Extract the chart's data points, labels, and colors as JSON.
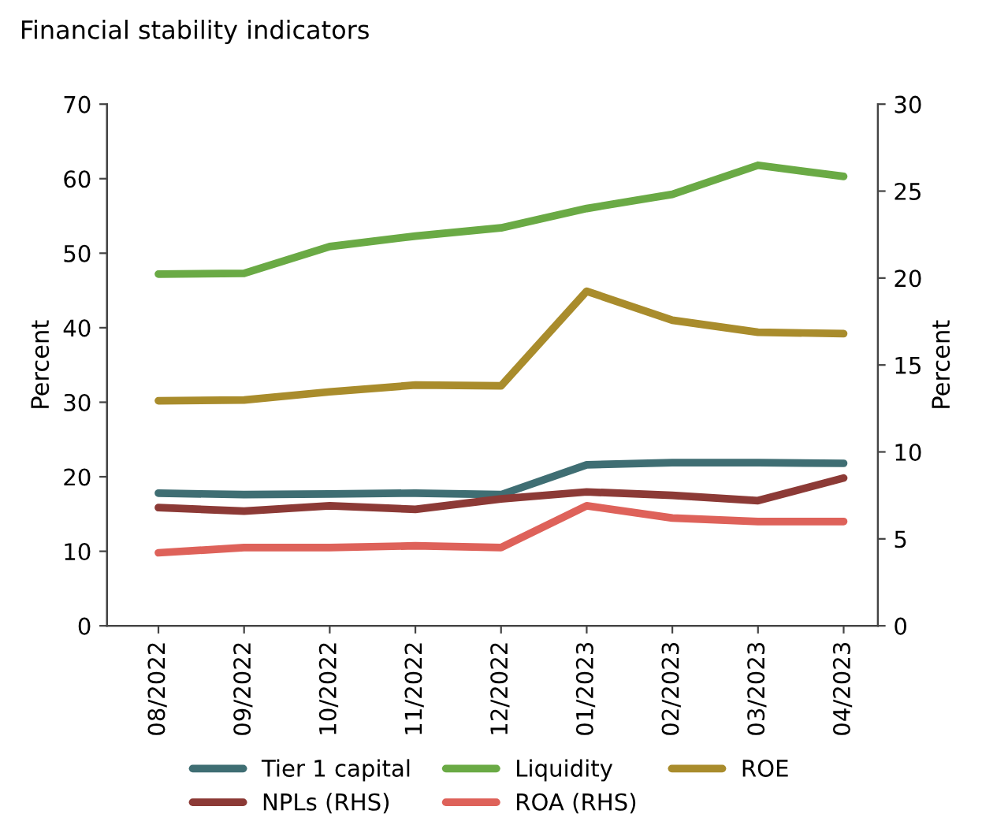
{
  "chart_data": {
    "type": "line",
    "title": "Financial stability indicators",
    "ylabel": "Percent",
    "y2label": "Percent",
    "categories": [
      "08/2022",
      "09/2022",
      "10/2022",
      "11/2022",
      "12/2022",
      "01/2023",
      "02/2023",
      "03/2023",
      "04/2023"
    ],
    "series": [
      {
        "name": "Tier 1 capital",
        "color": "#3f6e73",
        "values": [
          17.8,
          17.6,
          17.7,
          17.8,
          17.6,
          21.6,
          21.9,
          21.9,
          21.8
        ]
      },
      {
        "name": "Liquidity",
        "color": "#6aaa45",
        "values": [
          47.2,
          47.3,
          50.9,
          52.3,
          53.4,
          56.0,
          57.9,
          61.8,
          60.3
        ]
      },
      {
        "name": "ROE",
        "color": "#a98c2c",
        "values": [
          30.2,
          30.3,
          31.4,
          32.3,
          32.2,
          44.9,
          41.0,
          39.4,
          39.2
        ]
      },
      {
        "name": "NPLs (RHS)",
        "color": "#8c3a36",
        "axis": "y2",
        "values": [
          6.8,
          6.6,
          6.9,
          6.7,
          7.3,
          7.7,
          7.5,
          7.2,
          8.5
        ]
      },
      {
        "name": "ROA (RHS)",
        "color": "#de625a",
        "axis": "y2",
        "values": [
          4.2,
          4.5,
          4.5,
          4.6,
          4.5,
          6.9,
          6.2,
          6.0,
          6.0
        ]
      }
    ],
    "ylim": [
      0,
      70
    ],
    "yticks": [
      0,
      10,
      20,
      30,
      40,
      50,
      60,
      70
    ],
    "y2lim": [
      0,
      30
    ],
    "y2ticks": [
      0,
      5,
      10,
      15,
      20,
      25,
      30
    ],
    "grid": false,
    "legend": "bottom",
    "marker": "none",
    "line_style": "solid"
  }
}
